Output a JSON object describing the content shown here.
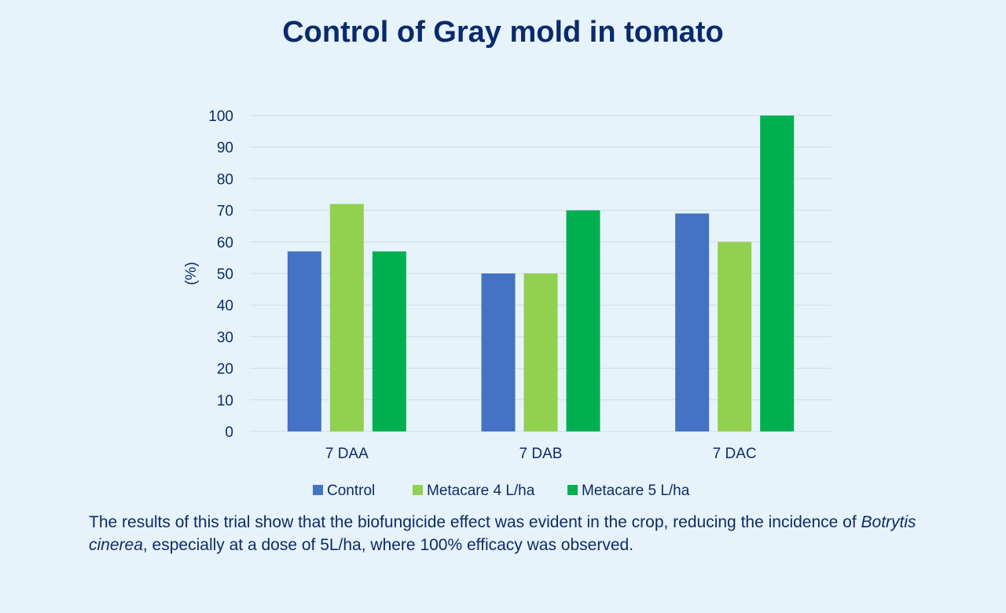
{
  "title": "Control of Gray mold in tomato",
  "caption": {
    "part1": "The results of this trial show that the biofungicide effect was evident in the crop, reducing the incidence of ",
    "italic": "Botrytis cinerea",
    "part2": ", especially at a dose of 5L/ha, where 100% efficacy was observed."
  },
  "chart_data": {
    "type": "bar",
    "categories": [
      "7 DAA",
      "7 DAB",
      "7 DAC"
    ],
    "series": [
      {
        "name": "Control",
        "color": "#4472c4",
        "values": [
          57,
          50,
          69
        ]
      },
      {
        "name": "Metacare 4 L/ha",
        "color": "#92d050",
        "values": [
          72,
          50,
          60
        ]
      },
      {
        "name": "Metacare 5 L/ha",
        "color": "#00b050",
        "values": [
          57,
          70,
          100
        ]
      }
    ],
    "ylabel": "(%)",
    "ylim": [
      0,
      100
    ],
    "yticks": [
      0,
      10,
      20,
      30,
      40,
      50,
      60,
      70,
      80,
      90,
      100
    ],
    "grid": true,
    "legend": "bottom"
  }
}
